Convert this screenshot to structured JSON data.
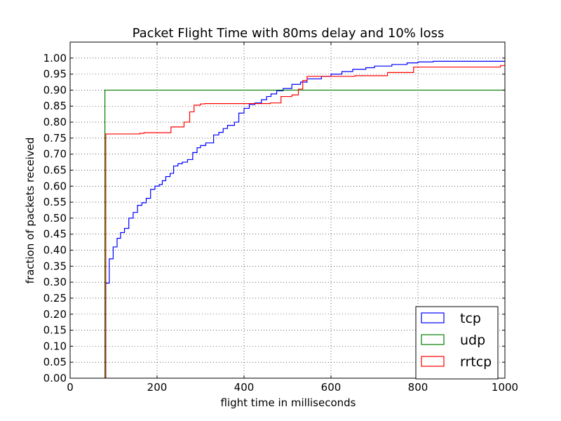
{
  "chart_data": {
    "type": "line",
    "step": true,
    "title": "Packet Flight Time with 80ms delay and 10% loss",
    "xlabel": "flight time in milliseconds",
    "ylabel": "fraction of packets received",
    "xlim": [
      0,
      1000
    ],
    "ylim": [
      0,
      1.05
    ],
    "xticks": [
      0,
      200,
      400,
      600,
      800,
      1000
    ],
    "yticks": [
      0.0,
      0.05,
      0.1,
      0.15,
      0.2,
      0.25,
      0.3,
      0.35,
      0.4,
      0.45,
      0.5,
      0.55,
      0.6,
      0.65,
      0.7,
      0.75,
      0.8,
      0.85,
      0.9,
      0.95,
      1.0
    ],
    "grid": true,
    "legend": "lower-right",
    "series": [
      {
        "name": "tcp",
        "color": "#0000ff",
        "points": [
          [
            82,
            0
          ],
          [
            82,
            0.297
          ],
          [
            90,
            0.297
          ],
          [
            90,
            0.373
          ],
          [
            99,
            0.373
          ],
          [
            99,
            0.41
          ],
          [
            108,
            0.41
          ],
          [
            108,
            0.437
          ],
          [
            116,
            0.437
          ],
          [
            116,
            0.455
          ],
          [
            125,
            0.455
          ],
          [
            125,
            0.468
          ],
          [
            135,
            0.468
          ],
          [
            135,
            0.5
          ],
          [
            145,
            0.5
          ],
          [
            145,
            0.518
          ],
          [
            155,
            0.518
          ],
          [
            155,
            0.54
          ],
          [
            165,
            0.54
          ],
          [
            165,
            0.548
          ],
          [
            175,
            0.548
          ],
          [
            175,
            0.562
          ],
          [
            185,
            0.562
          ],
          [
            185,
            0.59
          ],
          [
            195,
            0.59
          ],
          [
            195,
            0.6
          ],
          [
            205,
            0.6
          ],
          [
            205,
            0.605
          ],
          [
            212,
            0.605
          ],
          [
            212,
            0.617
          ],
          [
            220,
            0.617
          ],
          [
            220,
            0.63
          ],
          [
            230,
            0.63
          ],
          [
            230,
            0.64
          ],
          [
            238,
            0.64
          ],
          [
            238,
            0.663
          ],
          [
            248,
            0.663
          ],
          [
            248,
            0.67
          ],
          [
            258,
            0.67
          ],
          [
            258,
            0.675
          ],
          [
            270,
            0.675
          ],
          [
            270,
            0.683
          ],
          [
            282,
            0.683
          ],
          [
            282,
            0.705
          ],
          [
            292,
            0.705
          ],
          [
            292,
            0.72
          ],
          [
            300,
            0.72
          ],
          [
            300,
            0.727
          ],
          [
            312,
            0.727
          ],
          [
            312,
            0.735
          ],
          [
            330,
            0.735
          ],
          [
            330,
            0.76
          ],
          [
            342,
            0.76
          ],
          [
            342,
            0.768
          ],
          [
            352,
            0.768
          ],
          [
            352,
            0.78
          ],
          [
            362,
            0.78
          ],
          [
            362,
            0.79
          ],
          [
            378,
            0.79
          ],
          [
            378,
            0.8
          ],
          [
            388,
            0.8
          ],
          [
            388,
            0.828
          ],
          [
            400,
            0.828
          ],
          [
            400,
            0.843
          ],
          [
            412,
            0.843
          ],
          [
            412,
            0.855
          ],
          [
            425,
            0.855
          ],
          [
            425,
            0.86
          ],
          [
            440,
            0.86
          ],
          [
            440,
            0.87
          ],
          [
            452,
            0.87
          ],
          [
            452,
            0.88
          ],
          [
            462,
            0.88
          ],
          [
            462,
            0.888
          ],
          [
            475,
            0.888
          ],
          [
            475,
            0.898
          ],
          [
            490,
            0.898
          ],
          [
            490,
            0.905
          ],
          [
            510,
            0.905
          ],
          [
            510,
            0.918
          ],
          [
            530,
            0.918
          ],
          [
            530,
            0.925
          ],
          [
            545,
            0.925
          ],
          [
            545,
            0.935
          ],
          [
            578,
            0.935
          ],
          [
            578,
            0.943
          ],
          [
            600,
            0.943
          ],
          [
            600,
            0.95
          ],
          [
            625,
            0.95
          ],
          [
            625,
            0.958
          ],
          [
            650,
            0.958
          ],
          [
            650,
            0.965
          ],
          [
            680,
            0.965
          ],
          [
            680,
            0.97
          ],
          [
            700,
            0.97
          ],
          [
            700,
            0.975
          ],
          [
            740,
            0.975
          ],
          [
            740,
            0.98
          ],
          [
            775,
            0.98
          ],
          [
            775,
            0.985
          ],
          [
            800,
            0.985
          ],
          [
            800,
            0.988
          ],
          [
            835,
            0.988
          ],
          [
            835,
            0.99
          ],
          [
            1000,
            0.99
          ]
        ]
      },
      {
        "name": "udp",
        "color": "#008000",
        "points": [
          [
            80,
            0
          ],
          [
            80,
            0.9
          ],
          [
            1000,
            0.9
          ]
        ]
      },
      {
        "name": "rrtcp",
        "color": "#ff0000",
        "points": [
          [
            82,
            0
          ],
          [
            82,
            0.763
          ],
          [
            160,
            0.763
          ],
          [
            160,
            0.765
          ],
          [
            170,
            0.765
          ],
          [
            170,
            0.767
          ],
          [
            232,
            0.767
          ],
          [
            232,
            0.785
          ],
          [
            262,
            0.785
          ],
          [
            262,
            0.8
          ],
          [
            275,
            0.8
          ],
          [
            275,
            0.832
          ],
          [
            285,
            0.832
          ],
          [
            285,
            0.853
          ],
          [
            300,
            0.853
          ],
          [
            300,
            0.857
          ],
          [
            310,
            0.857
          ],
          [
            310,
            0.858
          ],
          [
            460,
            0.858
          ],
          [
            460,
            0.86
          ],
          [
            485,
            0.86
          ],
          [
            485,
            0.88
          ],
          [
            510,
            0.88
          ],
          [
            510,
            0.885
          ],
          [
            525,
            0.885
          ],
          [
            525,
            0.903
          ],
          [
            535,
            0.903
          ],
          [
            535,
            0.93
          ],
          [
            545,
            0.93
          ],
          [
            545,
            0.943
          ],
          [
            655,
            0.943
          ],
          [
            655,
            0.945
          ],
          [
            730,
            0.945
          ],
          [
            730,
            0.955
          ],
          [
            790,
            0.955
          ],
          [
            790,
            0.972
          ],
          [
            990,
            0.972
          ],
          [
            990,
            0.977
          ],
          [
            1000,
            0.977
          ]
        ]
      }
    ]
  }
}
